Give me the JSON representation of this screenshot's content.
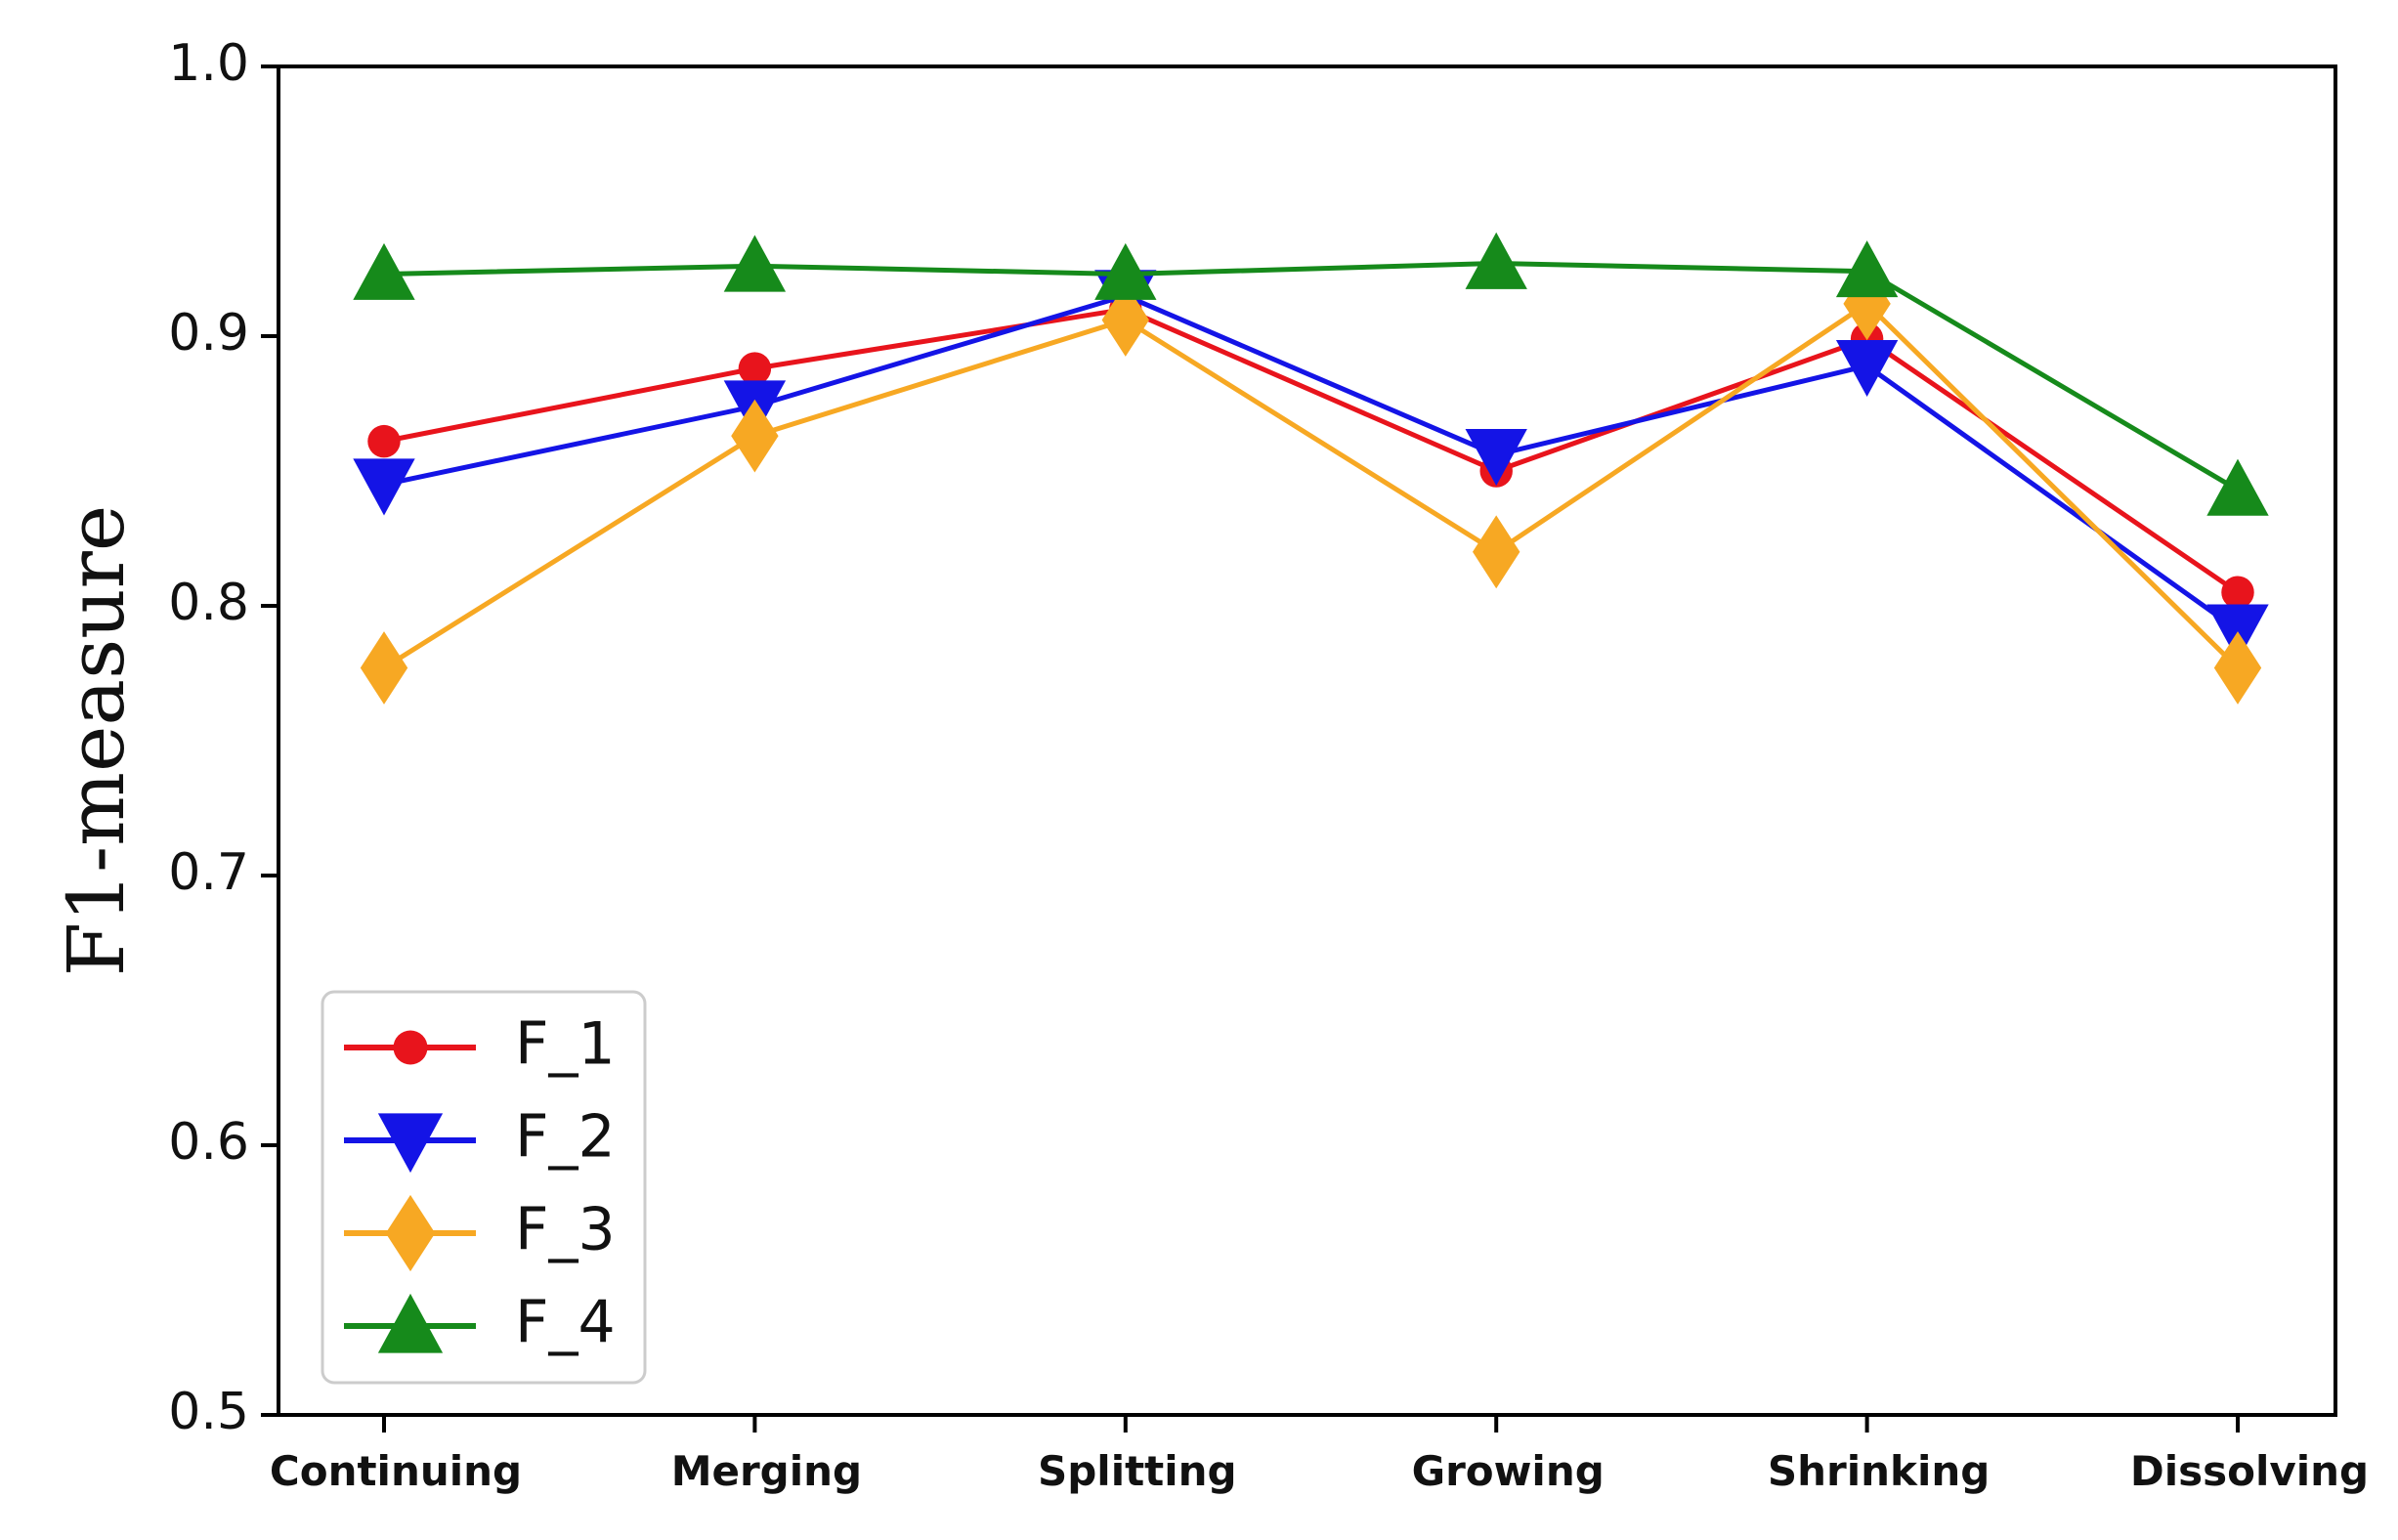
{
  "chart_data": {
    "type": "line",
    "title": "",
    "xlabel": "",
    "ylabel": "F1-measure",
    "ylim": [
      0.5,
      1.0
    ],
    "yticks": [
      "0.5",
      "0.6",
      "0.7",
      "0.8",
      "0.9",
      "1.0"
    ],
    "categories": [
      "Continuing",
      "Merging",
      "Splitting",
      "Growing",
      "Shrinking",
      "Dissolving"
    ],
    "legend_position": "lower-left",
    "series": [
      {
        "name": "F_1",
        "color": "#e8141c",
        "marker": "circle",
        "values": [
          0.861,
          0.888,
          0.91,
          0.85,
          0.899,
          0.805
        ]
      },
      {
        "name": "F_2",
        "color": "#1414e6",
        "marker": "triangle-down",
        "values": [
          0.845,
          0.874,
          0.915,
          0.856,
          0.889,
          0.791
        ]
      },
      {
        "name": "F_3",
        "color": "#f7a823",
        "marker": "diamond",
        "values": [
          0.777,
          0.863,
          0.906,
          0.82,
          0.912,
          0.777
        ]
      },
      {
        "name": "F_4",
        "color": "#168a1b",
        "marker": "triangle-up",
        "values": [
          0.923,
          0.926,
          0.923,
          0.927,
          0.924,
          0.843
        ]
      }
    ]
  }
}
